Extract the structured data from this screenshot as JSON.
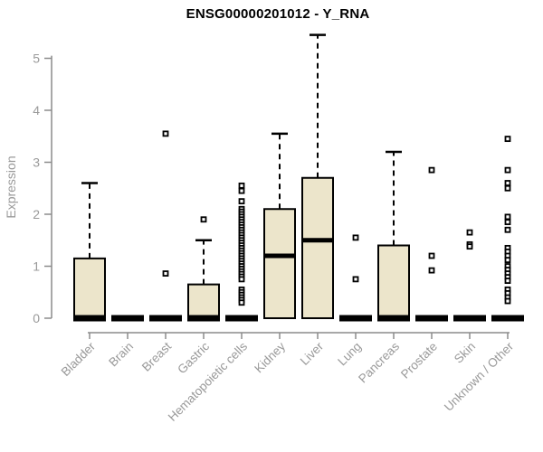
{
  "chart_data": {
    "type": "boxplot",
    "title": "ENSG00000201012 - Y_RNA",
    "ylabel": "Expression",
    "xlabel": "",
    "ylim": [
      0,
      5.6
    ],
    "yticks": [
      0,
      1,
      2,
      3,
      4,
      5
    ],
    "grid": false,
    "legend": null,
    "categories": [
      "Bladder",
      "Brain",
      "Breast",
      "Gastric",
      "Hematopoietic cells",
      "Kidney",
      "Liver",
      "Lung",
      "Pancreas",
      "Prostate",
      "Skin",
      "Unknown / Other"
    ],
    "boxes": [
      {
        "category": "Bladder",
        "q1": 0,
        "median": 0,
        "q3": 1.15,
        "whisker_low": 0,
        "whisker_high": 2.6,
        "outliers": []
      },
      {
        "category": "Brain",
        "q1": 0,
        "median": 0,
        "q3": 0,
        "whisker_low": 0,
        "whisker_high": 0,
        "outliers": []
      },
      {
        "category": "Breast",
        "q1": 0,
        "median": 0,
        "q3": 0,
        "whisker_low": 0,
        "whisker_high": 0,
        "outliers": [
          3.55,
          0.86
        ]
      },
      {
        "category": "Gastric",
        "q1": 0,
        "median": 0,
        "q3": 0.65,
        "whisker_low": 0,
        "whisker_high": 1.5,
        "outliers": [
          1.9
        ]
      },
      {
        "category": "Hematopoietic cells",
        "q1": 0,
        "median": 0,
        "q3": 0,
        "whisker_low": 0,
        "whisker_high": 0,
        "outliers": [
          2.55,
          2.45,
          2.25,
          2.1,
          2.05,
          2.0,
          1.95,
          1.9,
          1.85,
          1.8,
          1.75,
          1.7,
          1.65,
          1.6,
          1.55,
          1.5,
          1.45,
          1.4,
          1.35,
          1.3,
          1.25,
          1.2,
          1.15,
          1.1,
          1.05,
          1.0,
          0.95,
          0.9,
          0.85,
          0.8,
          0.75,
          0.55,
          0.5,
          0.45,
          0.4,
          0.35,
          0.3
        ]
      },
      {
        "category": "Kidney",
        "q1": 0,
        "median": 1.2,
        "q3": 2.1,
        "whisker_low": 0,
        "whisker_high": 3.55,
        "outliers": []
      },
      {
        "category": "Liver",
        "q1": 0,
        "median": 1.5,
        "q3": 2.7,
        "whisker_low": 0,
        "whisker_high": 5.45,
        "outliers": []
      },
      {
        "category": "Lung",
        "q1": 0,
        "median": 0,
        "q3": 0,
        "whisker_low": 0,
        "whisker_high": 0,
        "outliers": [
          1.55,
          0.75
        ]
      },
      {
        "category": "Pancreas",
        "q1": 0,
        "median": 0,
        "q3": 1.4,
        "whisker_low": 0,
        "whisker_high": 3.2,
        "outliers": []
      },
      {
        "category": "Prostate",
        "q1": 0,
        "median": 0,
        "q3": 0,
        "whisker_low": 0,
        "whisker_high": 0,
        "outliers": [
          2.85,
          1.2,
          0.92
        ]
      },
      {
        "category": "Skin",
        "q1": 0,
        "median": 0,
        "q3": 0,
        "whisker_low": 0,
        "whisker_high": 0,
        "outliers": [
          1.65,
          1.42,
          1.38
        ]
      },
      {
        "category": "Unknown / Other",
        "q1": 0,
        "median": 0,
        "q3": 0,
        "whisker_low": 0,
        "whisker_high": 0,
        "outliers": [
          3.45,
          2.85,
          2.6,
          2.5,
          1.95,
          1.85,
          1.7,
          1.35,
          1.28,
          1.2,
          1.12,
          1.0,
          0.93,
          0.86,
          0.79,
          0.72,
          0.55,
          0.48,
          0.4,
          0.33
        ]
      }
    ],
    "style": {
      "background": "#FFFFFF",
      "box_fill": "#ECE5CB",
      "box_border": "#000000",
      "median_color": "#000000",
      "whisker_color": "#000000",
      "axis_color": "#8C8C8C",
      "tick_label_color": "#999999",
      "title_color": "#000000"
    }
  }
}
